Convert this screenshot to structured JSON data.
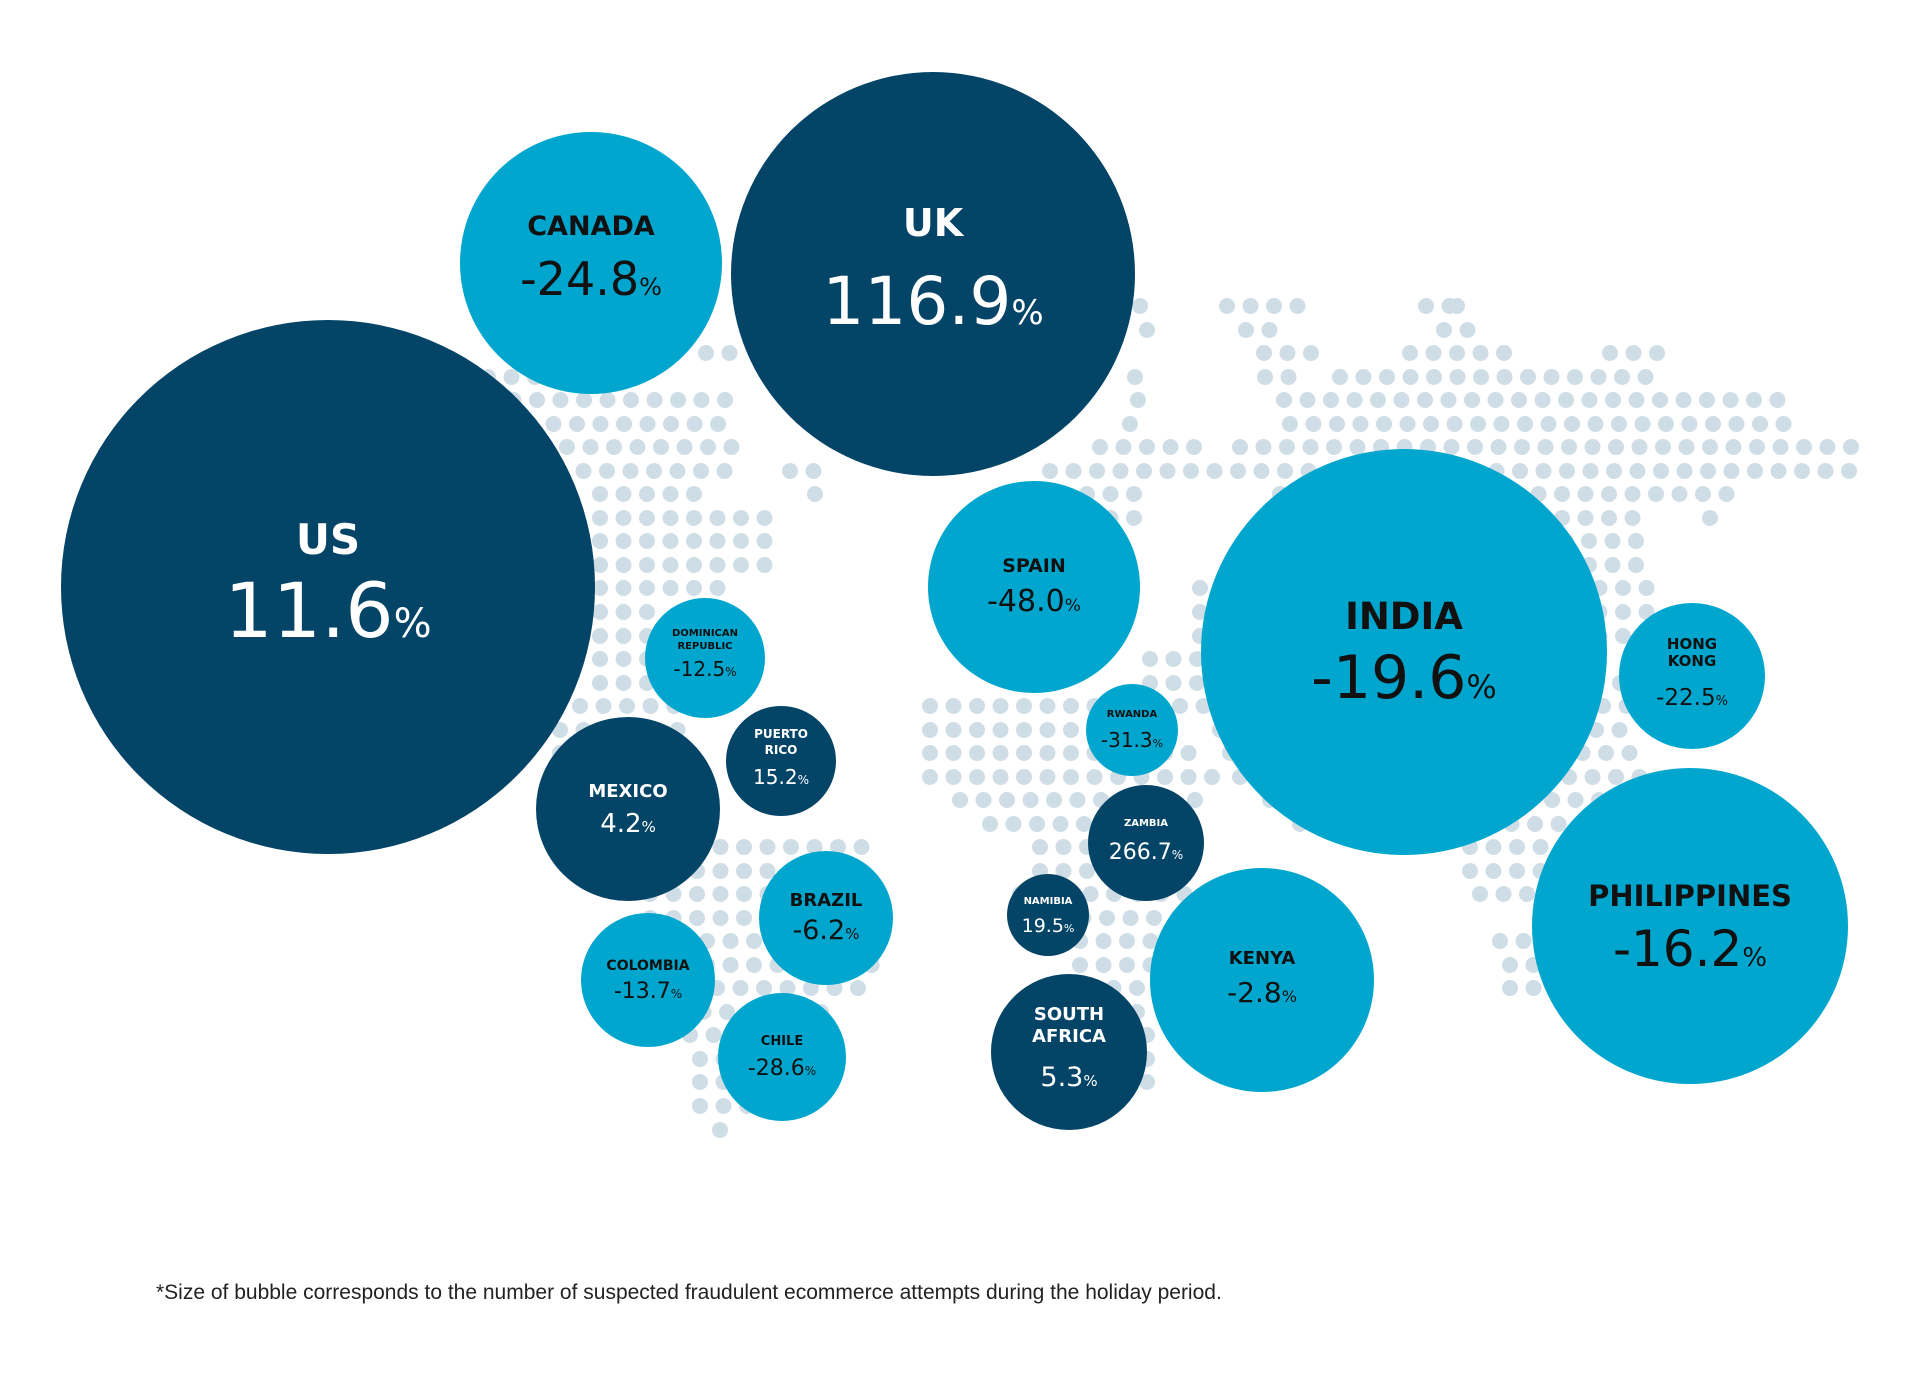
{
  "chart_data": {
    "type": "bubble-map",
    "title": "",
    "xlabel": "",
    "ylabel": "",
    "colors": {
      "dark": "#034467",
      "light": "#00a6cd",
      "map_dots": "#cfdde6",
      "text_on_dark": "#ffffff",
      "text_on_light": "#111111"
    },
    "background_map": "world map of dots",
    "series": [
      {
        "country": "US",
        "lines": [
          "US"
        ],
        "value": "11.6",
        "unit": "%",
        "shade": "dark"
      },
      {
        "country": "UK",
        "lines": [
          "UK"
        ],
        "value": "116.9",
        "unit": "%",
        "shade": "dark"
      },
      {
        "country": "CANADA",
        "lines": [
          "CANADA"
        ],
        "value": "-24.8",
        "unit": "%",
        "shade": "light"
      },
      {
        "country": "INDIA",
        "lines": [
          "INDIA"
        ],
        "value": "-19.6",
        "unit": "%",
        "shade": "light"
      },
      {
        "country": "PHILIPPINES",
        "lines": [
          "PHILIPPINES"
        ],
        "value": "-16.2",
        "unit": "%",
        "shade": "light"
      },
      {
        "country": "SPAIN",
        "lines": [
          "SPAIN"
        ],
        "value": "-48.0",
        "unit": "%",
        "shade": "light"
      },
      {
        "country": "KENYA",
        "lines": [
          "KENYA"
        ],
        "value": "-2.8",
        "unit": "%",
        "shade": "light"
      },
      {
        "country": "MEXICO",
        "lines": [
          "MEXICO"
        ],
        "value": "4.2",
        "unit": "%",
        "shade": "dark"
      },
      {
        "country": "HONG KONG",
        "lines": [
          "HONG",
          "KONG"
        ],
        "value": "-22.5",
        "unit": "%",
        "shade": "light"
      },
      {
        "country": "SOUTH AFRICA",
        "lines": [
          "SOUTH",
          "AFRICA"
        ],
        "value": "5.3",
        "unit": "%",
        "shade": "dark"
      },
      {
        "country": "BRAZIL",
        "lines": [
          "BRAZIL"
        ],
        "value": "-6.2",
        "unit": "%",
        "shade": "light"
      },
      {
        "country": "COLOMBIA",
        "lines": [
          "COLOMBIA"
        ],
        "value": "-13.7",
        "unit": "%",
        "shade": "light"
      },
      {
        "country": "CHILE",
        "lines": [
          "CHILE"
        ],
        "value": "-28.6",
        "unit": "%",
        "shade": "light"
      },
      {
        "country": "DOMINICAN REPUBLIC",
        "lines": [
          "DOMINICAN",
          "REPUBLIC"
        ],
        "value": "-12.5",
        "unit": "%",
        "shade": "light"
      },
      {
        "country": "PUERTO RICO",
        "lines": [
          "PUERTO",
          "RICO"
        ],
        "value": "15.2",
        "unit": "%",
        "shade": "dark"
      },
      {
        "country": "ZAMBIA",
        "lines": [
          "ZAMBIA"
        ],
        "value": "266.7",
        "unit": "%",
        "shade": "dark"
      },
      {
        "country": "RWANDA",
        "lines": [
          "RWANDA"
        ],
        "value": "-31.3",
        "unit": "%",
        "shade": "light"
      },
      {
        "country": "NAMIBIA",
        "lines": [
          "NAMIBIA"
        ],
        "value": "19.5",
        "unit": "%",
        "shade": "dark"
      }
    ]
  },
  "footnote": "*Size of bubble corresponds to the number of suspected fraudulent ecommerce attempts during the holiday period."
}
